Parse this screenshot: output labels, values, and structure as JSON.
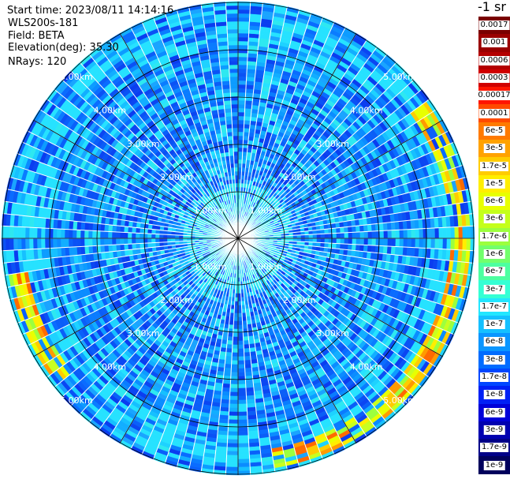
{
  "header": {
    "start_time": "Start time: 2023/08/11 14:14:16",
    "instrument": "WLS200s-181",
    "field": "Field: BETA",
    "elevation": "Elevation(deg): 35.30",
    "nrays": "NRays: 120"
  },
  "units": "-1 sr",
  "range_rings": [
    "1.00km",
    "2.00km",
    "3.00km",
    "4.00km",
    "5.00km"
  ],
  "colorbar": [
    {
      "label": "0.0017",
      "color": "#7a0000"
    },
    {
      "label": "0.001",
      "color": "#9a0000"
    },
    {
      "label": "0.0006",
      "color": "#b40000"
    },
    {
      "label": "0.0003",
      "color": "#d00000"
    },
    {
      "label": "0.00017",
      "color": "#ff1500"
    },
    {
      "label": "0.0001",
      "color": "#ff4a00"
    },
    {
      "label": "6e-5",
      "color": "#ff7a00"
    },
    {
      "label": "3e-5",
      "color": "#ffa200"
    },
    {
      "label": "1.7e-5",
      "color": "#ffcc00"
    },
    {
      "label": "1e-5",
      "color": "#ffee00"
    },
    {
      "label": "6e-6",
      "color": "#e8ff00"
    },
    {
      "label": "3e-6",
      "color": "#c4ff1a"
    },
    {
      "label": "1.7e-6",
      "color": "#9cff3e"
    },
    {
      "label": "1e-6",
      "color": "#72ff6c"
    },
    {
      "label": "6e-7",
      "color": "#4dffa0"
    },
    {
      "label": "3e-7",
      "color": "#34ffd4"
    },
    {
      "label": "1.7e-7",
      "color": "#22e6ff"
    },
    {
      "label": "1e-7",
      "color": "#15c0ff"
    },
    {
      "label": "6e-8",
      "color": "#0a96ff"
    },
    {
      "label": "3e-8",
      "color": "#006cff"
    },
    {
      "label": "1.7e-8",
      "color": "#0046ff"
    },
    {
      "label": "1e-8",
      "color": "#0020f5"
    },
    {
      "label": "6e-9",
      "color": "#0000d8"
    },
    {
      "label": "3e-9",
      "color": "#0000b0"
    },
    {
      "label": "1.7e-9",
      "color": "#000088"
    },
    {
      "label": "1e-9",
      "color": "#00005c"
    }
  ]
}
